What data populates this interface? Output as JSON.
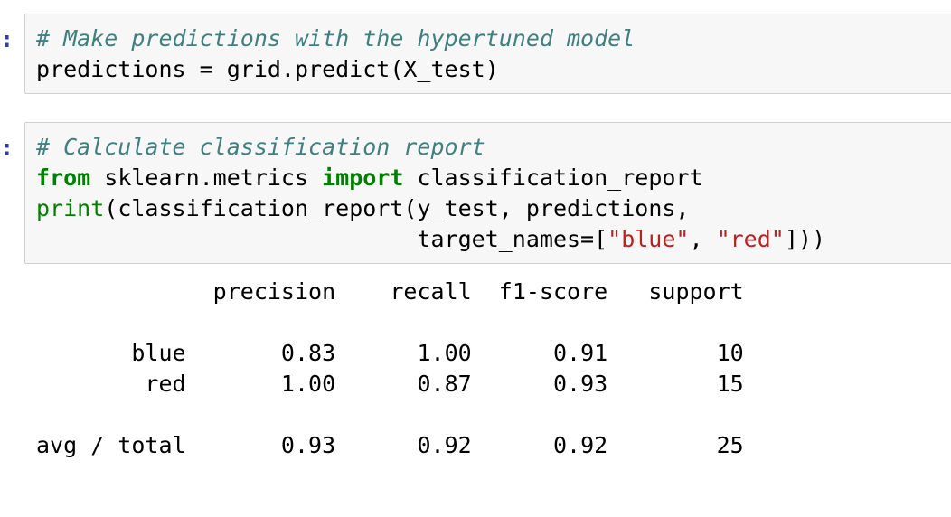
{
  "cells": [
    {
      "prompt": ":",
      "lines": [
        [
          {
            "cls": "cm",
            "text": "# Make predictions with the hypertuned model"
          }
        ],
        [
          {
            "cls": "",
            "text": "predictions = grid.predict(X_test)"
          }
        ]
      ]
    },
    {
      "prompt": ":",
      "lines": [
        [
          {
            "cls": "cm",
            "text": "# Calculate classification report"
          }
        ],
        [
          {
            "cls": "kw",
            "text": "from"
          },
          {
            "cls": "",
            "text": " sklearn.metrics "
          },
          {
            "cls": "kw",
            "text": "import"
          },
          {
            "cls": "",
            "text": " classification_report"
          }
        ],
        [
          {
            "cls": "bi",
            "text": "print"
          },
          {
            "cls": "",
            "text": "(classification_report(y_test, predictions,"
          }
        ],
        [
          {
            "cls": "",
            "text": "                            target_names=["
          },
          {
            "cls": "str",
            "text": "\"blue\""
          },
          {
            "cls": "",
            "text": ", "
          },
          {
            "cls": "str",
            "text": "\"red\""
          },
          {
            "cls": "",
            "text": "]))"
          }
        ]
      ]
    }
  ],
  "output": {
    "header": [
      "",
      "precision",
      "recall",
      "f1-score",
      "support"
    ],
    "rows": [
      {
        "label": "blue",
        "precision": "0.83",
        "recall": "1.00",
        "f1": "0.91",
        "support": "10"
      },
      {
        "label": "red",
        "precision": "1.00",
        "recall": "0.87",
        "f1": "0.93",
        "support": "15"
      }
    ],
    "total": {
      "label": "avg / total",
      "precision": "0.93",
      "recall": "0.92",
      "f1": "0.92",
      "support": "25"
    }
  }
}
